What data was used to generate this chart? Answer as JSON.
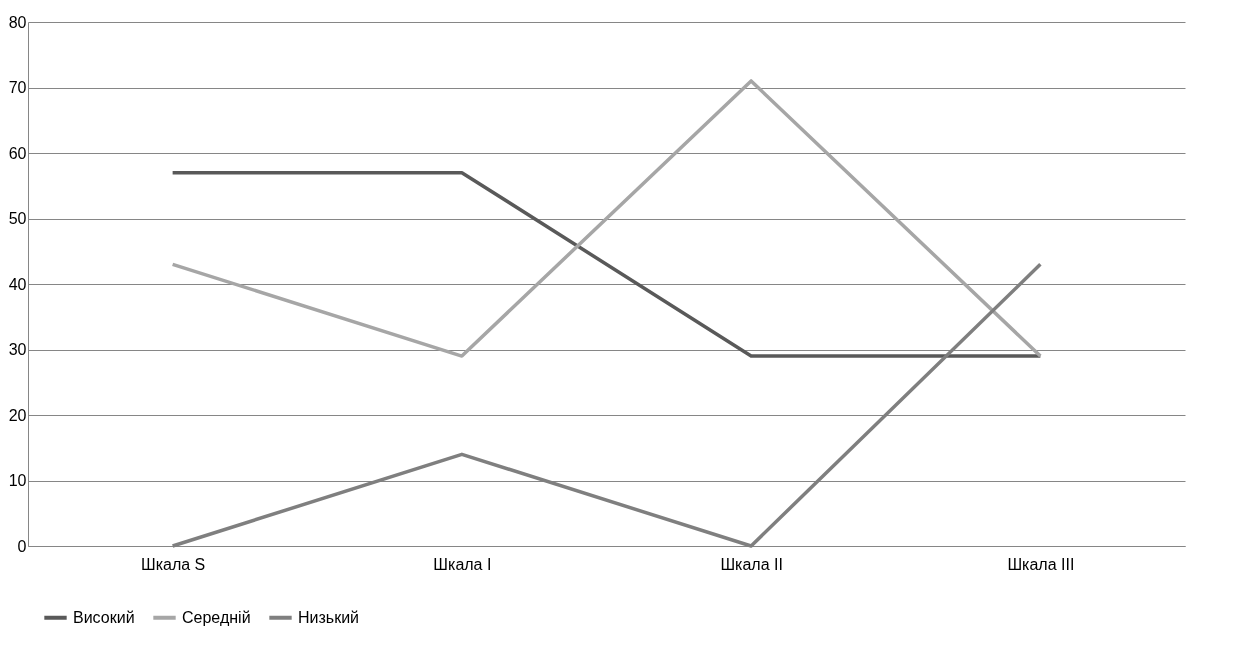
{
  "chart_data": {
    "type": "line",
    "categories": [
      "Шкала S",
      "Шкала I",
      "Шкала II",
      "Шкала III"
    ],
    "series": [
      {
        "name": "Високий",
        "color": "#595959",
        "values": [
          57,
          57,
          29,
          29
        ]
      },
      {
        "name": "Середній",
        "color": "#a6a6a6",
        "values": [
          43,
          29,
          71,
          29
        ]
      },
      {
        "name": "Низький",
        "color": "#7f7f7f",
        "values": [
          0,
          14,
          0,
          43
        ]
      }
    ],
    "ylim": [
      0,
      80
    ],
    "yticks": [
      0,
      10,
      20,
      30,
      40,
      50,
      60,
      70,
      80
    ],
    "grid": "y",
    "legend": "bottom",
    "marker": "none",
    "line_style": "solid"
  }
}
